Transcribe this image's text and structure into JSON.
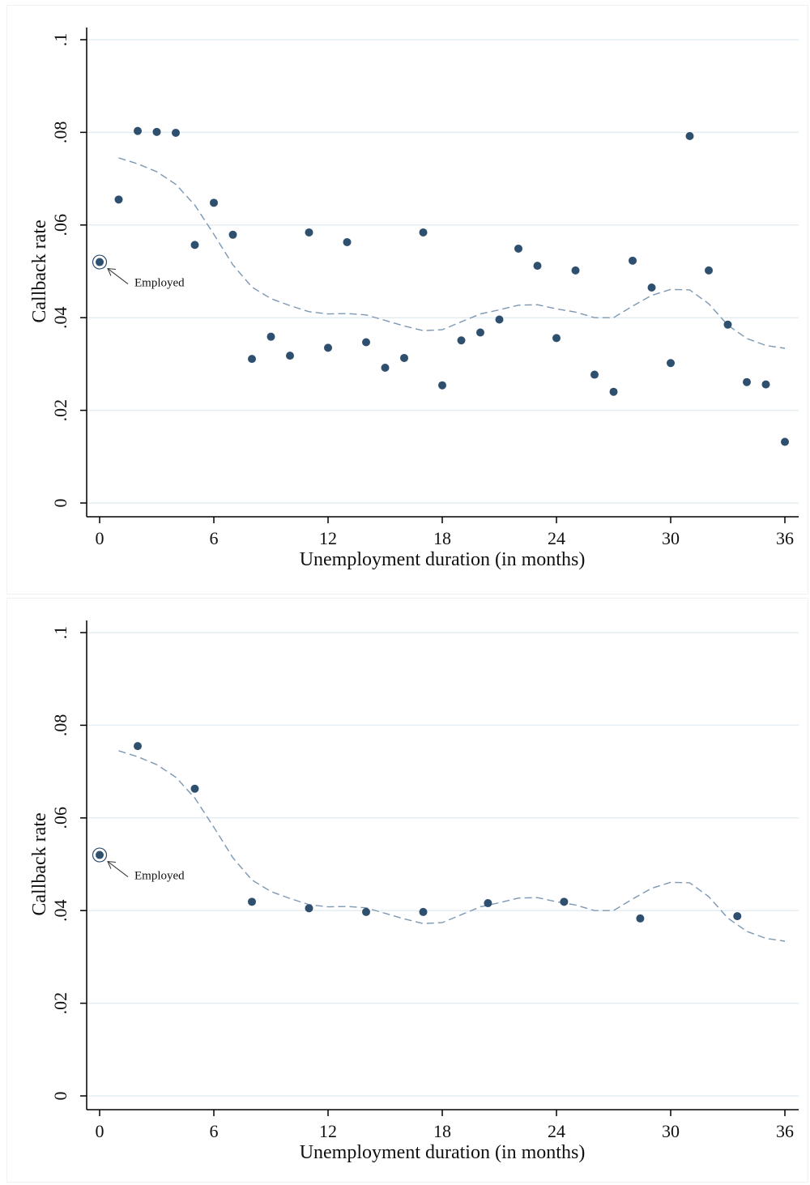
{
  "colors": {
    "marker": "#2f4f6f",
    "fit_line": "#7d98b3",
    "grid": "#e4eef2",
    "axis": "#000000"
  },
  "chart_data": [
    {
      "type": "scatter",
      "xlabel": "Unemployment duration (in months)",
      "ylabel": "Callback rate",
      "xlim": [
        0,
        36
      ],
      "ylim": [
        0,
        0.1
      ],
      "x_ticks": [
        0,
        6,
        12,
        18,
        24,
        30,
        36
      ],
      "x_tick_labels": [
        "0",
        "6",
        "12",
        "18",
        "24",
        "30",
        "36"
      ],
      "y_ticks": [
        0,
        0.02,
        0.04,
        0.06,
        0.08,
        0.1
      ],
      "y_tick_labels": [
        "0",
        ".02",
        ".04",
        ".06",
        ".08",
        ".1"
      ],
      "grid": "horizontal",
      "annotation": {
        "label": "Employed",
        "x": 0,
        "y": 0.052
      },
      "points": [
        [
          1,
          0.0655
        ],
        [
          2,
          0.0803
        ],
        [
          3,
          0.0801
        ],
        [
          4,
          0.0799
        ],
        [
          5,
          0.0557
        ],
        [
          6,
          0.0648
        ],
        [
          7,
          0.0579
        ],
        [
          8,
          0.0311
        ],
        [
          9,
          0.0359
        ],
        [
          10,
          0.0318
        ],
        [
          11,
          0.0584
        ],
        [
          12,
          0.0335
        ],
        [
          13,
          0.0563
        ],
        [
          14,
          0.0347
        ],
        [
          15,
          0.0292
        ],
        [
          16,
          0.0313
        ],
        [
          17,
          0.0584
        ],
        [
          18,
          0.0254
        ],
        [
          19,
          0.0351
        ],
        [
          20,
          0.0368
        ],
        [
          21,
          0.0396
        ],
        [
          22,
          0.0549
        ],
        [
          23,
          0.0512
        ],
        [
          24,
          0.0356
        ],
        [
          25,
          0.0502
        ],
        [
          26,
          0.0277
        ],
        [
          27,
          0.024
        ],
        [
          28,
          0.0523
        ],
        [
          29,
          0.0465
        ],
        [
          30,
          0.0302
        ],
        [
          31,
          0.0792
        ],
        [
          32,
          0.0502
        ],
        [
          33,
          0.0385
        ],
        [
          34,
          0.0261
        ],
        [
          35,
          0.0256
        ],
        [
          36,
          0.0132
        ]
      ],
      "fit": [
        [
          1,
          0.0745
        ],
        [
          2,
          0.0732
        ],
        [
          3,
          0.0715
        ],
        [
          4,
          0.0688
        ],
        [
          5,
          0.0643
        ],
        [
          6,
          0.058
        ],
        [
          7,
          0.0514
        ],
        [
          8,
          0.0466
        ],
        [
          9,
          0.0441
        ],
        [
          10,
          0.0426
        ],
        [
          11,
          0.0413
        ],
        [
          12,
          0.0408
        ],
        [
          13,
          0.0409
        ],
        [
          14,
          0.0406
        ],
        [
          15,
          0.0394
        ],
        [
          16,
          0.0382
        ],
        [
          17,
          0.0372
        ],
        [
          18,
          0.0374
        ],
        [
          19,
          0.0391
        ],
        [
          20,
          0.0408
        ],
        [
          21,
          0.0417
        ],
        [
          22,
          0.0427
        ],
        [
          23,
          0.0428
        ],
        [
          24,
          0.0419
        ],
        [
          25,
          0.0412
        ],
        [
          26,
          0.04
        ],
        [
          27,
          0.04
        ],
        [
          28,
          0.0425
        ],
        [
          29,
          0.0448
        ],
        [
          30,
          0.0461
        ],
        [
          31,
          0.046
        ],
        [
          32,
          0.043
        ],
        [
          33,
          0.0384
        ],
        [
          34,
          0.0355
        ],
        [
          35,
          0.034
        ],
        [
          36,
          0.0334
        ]
      ]
    },
    {
      "type": "scatter",
      "xlabel": "Unemployment duration (in months)",
      "ylabel": "Callback rate",
      "xlim": [
        0,
        36
      ],
      "ylim": [
        0,
        0.1
      ],
      "x_ticks": [
        0,
        6,
        12,
        18,
        24,
        30,
        36
      ],
      "x_tick_labels": [
        "0",
        "6",
        "12",
        "18",
        "24",
        "30",
        "36"
      ],
      "y_ticks": [
        0,
        0.02,
        0.04,
        0.06,
        0.08,
        0.1
      ],
      "y_tick_labels": [
        "0",
        ".02",
        ".04",
        ".06",
        ".08",
        ".1"
      ],
      "grid": "horizontal",
      "annotation": {
        "label": "Employed",
        "x": 0,
        "y": 0.052
      },
      "points": [
        [
          2,
          0.0755
        ],
        [
          5,
          0.0663
        ],
        [
          8,
          0.0419
        ],
        [
          11,
          0.0405
        ],
        [
          14,
          0.0397
        ],
        [
          17,
          0.0397
        ],
        [
          20.4,
          0.0416
        ],
        [
          24.4,
          0.0419
        ],
        [
          28.4,
          0.0383
        ],
        [
          33.5,
          0.0388
        ]
      ],
      "fit": [
        [
          1,
          0.0745
        ],
        [
          2,
          0.0732
        ],
        [
          3,
          0.0715
        ],
        [
          4,
          0.0688
        ],
        [
          5,
          0.0643
        ],
        [
          6,
          0.058
        ],
        [
          7,
          0.0514
        ],
        [
          8,
          0.0466
        ],
        [
          9,
          0.0441
        ],
        [
          10,
          0.0426
        ],
        [
          11,
          0.0413
        ],
        [
          12,
          0.0408
        ],
        [
          13,
          0.0409
        ],
        [
          14,
          0.0406
        ],
        [
          15,
          0.0394
        ],
        [
          16,
          0.0382
        ],
        [
          17,
          0.0372
        ],
        [
          18,
          0.0374
        ],
        [
          19,
          0.0391
        ],
        [
          20,
          0.0408
        ],
        [
          21,
          0.0417
        ],
        [
          22,
          0.0427
        ],
        [
          23,
          0.0428
        ],
        [
          24,
          0.0419
        ],
        [
          25,
          0.0412
        ],
        [
          26,
          0.04
        ],
        [
          27,
          0.04
        ],
        [
          28,
          0.0425
        ],
        [
          29,
          0.0448
        ],
        [
          30,
          0.0461
        ],
        [
          31,
          0.046
        ],
        [
          32,
          0.043
        ],
        [
          33,
          0.0384
        ],
        [
          34,
          0.0355
        ],
        [
          35,
          0.034
        ],
        [
          36,
          0.0334
        ]
      ]
    }
  ]
}
